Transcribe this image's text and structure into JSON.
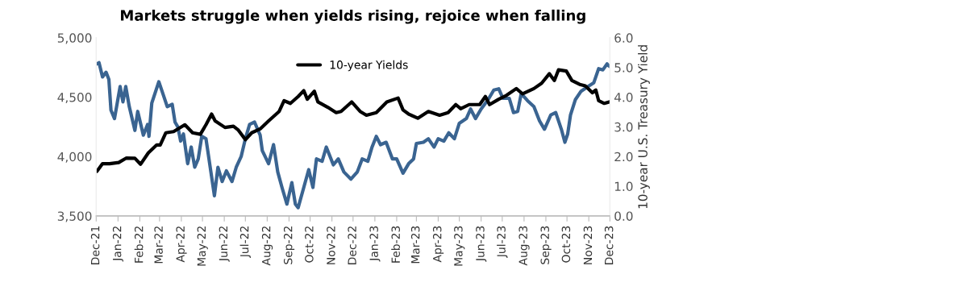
{
  "chart_data": {
    "type": "line",
    "title": "Markets struggle when yields rising, rejoice when falling",
    "y2label": "10-year U.S. Treasury Yield",
    "xlim": [
      "2021-12-01",
      "2023-12-01"
    ],
    "xticks": [
      {
        "value": "2021-12-01",
        "label": "Dec-21"
      },
      {
        "value": "2022-01-01",
        "label": "Jan-22"
      },
      {
        "value": "2022-02-01",
        "label": "Feb-22"
      },
      {
        "value": "2022-03-01",
        "label": "Mar-22"
      },
      {
        "value": "2022-04-01",
        "label": "Apr-22"
      },
      {
        "value": "2022-05-01",
        "label": "May-22"
      },
      {
        "value": "2022-06-01",
        "label": "Jun-22"
      },
      {
        "value": "2022-07-01",
        "label": "Jul-22"
      },
      {
        "value": "2022-08-01",
        "label": "Aug-22"
      },
      {
        "value": "2022-09-01",
        "label": "Sep-22"
      },
      {
        "value": "2022-10-01",
        "label": "Oct-22"
      },
      {
        "value": "2022-11-01",
        "label": "Nov-22"
      },
      {
        "value": "2022-12-01",
        "label": "Dec-22"
      },
      {
        "value": "2023-01-01",
        "label": "Jan-23"
      },
      {
        "value": "2023-02-01",
        "label": "Feb-23"
      },
      {
        "value": "2023-03-01",
        "label": "Mar-23"
      },
      {
        "value": "2023-04-01",
        "label": "Apr-23"
      },
      {
        "value": "2023-05-01",
        "label": "May-23"
      },
      {
        "value": "2023-06-01",
        "label": "Jun-23"
      },
      {
        "value": "2023-07-01",
        "label": "Jul-23"
      },
      {
        "value": "2023-08-01",
        "label": "Aug-23"
      },
      {
        "value": "2023-09-01",
        "label": "Sep-23"
      },
      {
        "value": "2023-10-01",
        "label": "Oct-23"
      },
      {
        "value": "2023-11-01",
        "label": "Nov-23"
      },
      {
        "value": "2023-12-01",
        "label": "Dec-23"
      }
    ],
    "ylim": [
      3500,
      5000
    ],
    "yticks": [
      {
        "value": 3500,
        "label": "3,500"
      },
      {
        "value": 4000,
        "label": "4,000"
      },
      {
        "value": 4500,
        "label": "4,500"
      },
      {
        "value": 5000,
        "label": "5,000"
      }
    ],
    "y2lim": [
      0,
      6
    ],
    "y2ticks": [
      {
        "value": 0,
        "label": "0.0"
      },
      {
        "value": 1,
        "label": "1.0"
      },
      {
        "value": 2,
        "label": "2.0"
      },
      {
        "value": 3,
        "label": "3.0"
      },
      {
        "value": 4,
        "label": "4.0"
      },
      {
        "value": 5,
        "label": "5.0"
      },
      {
        "value": 6,
        "label": "6.0"
      }
    ],
    "grid": false,
    "legend": "top",
    "line_style": "solid",
    "marker": "none",
    "series": [
      {
        "color": "#3a6491",
        "x": [
          "2021-12-02",
          "2021-12-05",
          "2021-12-10",
          "2021-12-15",
          "2021-12-19",
          "2021-12-22",
          "2021-12-27",
          "2022-01-04",
          "2022-01-08",
          "2022-01-12",
          "2022-01-17",
          "2022-01-25",
          "2022-01-29",
          "2022-02-06",
          "2022-02-12",
          "2022-02-14",
          "2022-02-18",
          "2022-02-28",
          "2022-03-04",
          "2022-03-12",
          "2022-03-19",
          "2022-03-23",
          "2022-03-27",
          "2022-03-31",
          "2022-04-04",
          "2022-04-10",
          "2022-04-15",
          "2022-04-20",
          "2022-04-25",
          "2022-04-30",
          "2022-05-06",
          "2022-05-12",
          "2022-05-18",
          "2022-05-23",
          "2022-05-29",
          "2022-06-04",
          "2022-06-12",
          "2022-06-18",
          "2022-06-25",
          "2022-07-01",
          "2022-07-07",
          "2022-07-14",
          "2022-07-22",
          "2022-07-25",
          "2022-08-03",
          "2022-08-10",
          "2022-08-16",
          "2022-08-22",
          "2022-08-29",
          "2022-09-05",
          "2022-09-10",
          "2022-09-14",
          "2022-09-22",
          "2022-09-29",
          "2022-10-05",
          "2022-10-10",
          "2022-10-18",
          "2022-10-24",
          "2022-11-03",
          "2022-11-10",
          "2022-11-18",
          "2022-11-28",
          "2022-12-07",
          "2022-12-14",
          "2022-12-22",
          "2022-12-28",
          "2023-01-03",
          "2023-01-09",
          "2023-01-17",
          "2023-01-26",
          "2023-02-01",
          "2023-02-10",
          "2023-02-18",
          "2023-02-25",
          "2023-03-01",
          "2023-03-11",
          "2023-03-18",
          "2023-03-26",
          "2023-04-01",
          "2023-04-09",
          "2023-04-16",
          "2023-04-24",
          "2023-05-01",
          "2023-05-11",
          "2023-05-17",
          "2023-05-24",
          "2023-06-01",
          "2023-06-11",
          "2023-06-19",
          "2023-06-26",
          "2023-07-02",
          "2023-07-11",
          "2023-07-17",
          "2023-07-23",
          "2023-07-28",
          "2023-08-06",
          "2023-08-15",
          "2023-08-23",
          "2023-08-30",
          "2023-09-08",
          "2023-09-15",
          "2023-09-23",
          "2023-09-28",
          "2023-10-02",
          "2023-10-06",
          "2023-10-13",
          "2023-10-21",
          "2023-10-31",
          "2023-11-08",
          "2023-11-15",
          "2023-11-21",
          "2023-11-27",
          "2023-11-30"
        ],
        "values": [
          4780,
          4790,
          4670,
          4710,
          4650,
          4390,
          4320,
          4590,
          4460,
          4590,
          4420,
          4220,
          4380,
          4180,
          4270,
          4170,
          4450,
          4630,
          4560,
          4420,
          4440,
          4290,
          4250,
          4130,
          4190,
          3940,
          4080,
          3910,
          3980,
          4170,
          4150,
          3910,
          3670,
          3910,
          3790,
          3880,
          3790,
          3910,
          4000,
          4150,
          4270,
          4290,
          4180,
          4050,
          3940,
          4100,
          3870,
          3740,
          3600,
          3780,
          3600,
          3570,
          3740,
          3890,
          3740,
          3980,
          3960,
          4080,
          3930,
          3980,
          3870,
          3810,
          3870,
          3980,
          3960,
          4080,
          4170,
          4100,
          4120,
          3980,
          3980,
          3860,
          3940,
          3980,
          4110,
          4120,
          4150,
          4080,
          4150,
          4130,
          4200,
          4150,
          4280,
          4320,
          4400,
          4320,
          4400,
          4480,
          4560,
          4570,
          4490,
          4490,
          4370,
          4380,
          4530,
          4470,
          4420,
          4300,
          4230,
          4350,
          4370,
          4230,
          4120,
          4190,
          4350,
          4480,
          4550,
          4590,
          4620,
          4740,
          4730,
          4780,
          4760
        ]
      },
      {
        "name": "10-year Yields",
        "color": "#000000",
        "axis": "y2",
        "x": [
          "2021-12-02",
          "2021-12-10",
          "2021-12-20",
          "2022-01-02",
          "2022-01-13",
          "2022-01-25",
          "2022-02-02",
          "2022-02-13",
          "2022-02-25",
          "2022-03-02",
          "2022-03-10",
          "2022-03-21",
          "2022-04-06",
          "2022-04-17",
          "2022-04-28",
          "2022-05-06",
          "2022-05-14",
          "2022-05-19",
          "2022-06-02",
          "2022-06-14",
          "2022-06-21",
          "2022-07-01",
          "2022-07-10",
          "2022-07-22",
          "2022-08-03",
          "2022-08-18",
          "2022-08-25",
          "2022-09-03",
          "2022-09-14",
          "2022-09-22",
          "2022-09-27",
          "2022-10-07",
          "2022-10-12",
          "2022-10-26",
          "2022-11-07",
          "2022-11-14",
          "2022-11-29",
          "2022-12-11",
          "2022-12-20",
          "2023-01-03",
          "2023-01-18",
          "2023-02-03",
          "2023-02-10",
          "2023-02-18",
          "2023-03-03",
          "2023-03-18",
          "2023-04-03",
          "2023-04-15",
          "2023-04-26",
          "2023-05-03",
          "2023-05-15",
          "2023-05-30",
          "2023-06-07",
          "2023-06-13",
          "2023-06-26",
          "2023-07-07",
          "2023-07-21",
          "2023-07-30",
          "2023-08-15",
          "2023-08-26",
          "2023-09-06",
          "2023-09-13",
          "2023-09-19",
          "2023-09-30",
          "2023-10-08",
          "2023-10-19",
          "2023-10-27",
          "2023-11-06",
          "2023-11-11",
          "2023-11-15",
          "2023-11-23",
          "2023-11-30"
        ],
        "values": [
          1.5,
          1.76,
          1.76,
          1.8,
          1.95,
          1.94,
          1.74,
          2.12,
          2.39,
          2.39,
          2.8,
          2.84,
          3.07,
          2.8,
          2.75,
          3.07,
          3.43,
          3.2,
          2.98,
          3.02,
          2.89,
          2.57,
          2.8,
          2.93,
          3.2,
          3.52,
          3.88,
          3.79,
          4.02,
          4.22,
          3.93,
          4.2,
          3.84,
          3.66,
          3.48,
          3.52,
          3.84,
          3.52,
          3.39,
          3.48,
          3.84,
          3.97,
          3.57,
          3.43,
          3.29,
          3.52,
          3.39,
          3.48,
          3.75,
          3.61,
          3.75,
          3.75,
          4.02,
          3.75,
          3.93,
          4.06,
          4.29,
          4.11,
          4.29,
          4.47,
          4.79,
          4.56,
          4.92,
          4.88,
          4.56,
          4.43,
          4.38,
          4.15,
          4.24,
          3.88,
          3.79,
          3.84
        ]
      }
    ]
  }
}
